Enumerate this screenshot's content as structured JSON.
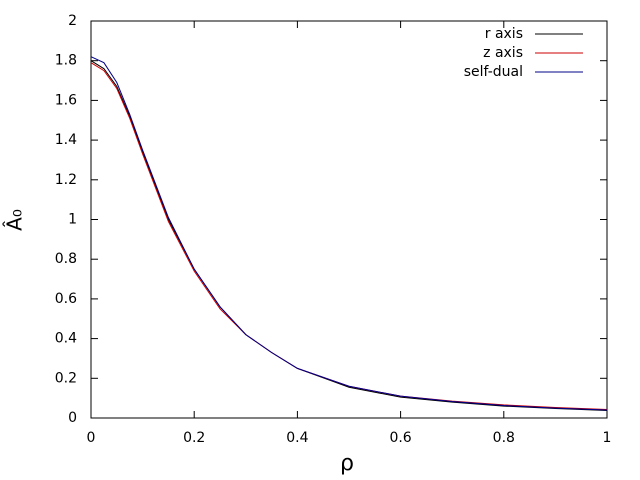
{
  "chart_data": {
    "type": "line",
    "xlabel": "ρ",
    "ylabel": "Â₀",
    "x": [
      0,
      0.025,
      0.05,
      0.075,
      0.1,
      0.15,
      0.2,
      0.25,
      0.3,
      0.35,
      0.4,
      0.5,
      0.6,
      0.7,
      0.8,
      0.9,
      1.0
    ],
    "series": [
      {
        "name": "r axis",
        "color": "#000000",
        "values": [
          1.8,
          1.76,
          1.67,
          1.52,
          1.34,
          1.0,
          0.75,
          0.56,
          0.42,
          0.33,
          0.25,
          0.155,
          0.105,
          0.08,
          0.06,
          0.048,
          0.038
        ]
      },
      {
        "name": "z axis",
        "color": "#cc0000",
        "values": [
          1.79,
          1.75,
          1.66,
          1.51,
          1.33,
          0.99,
          0.74,
          0.55,
          0.42,
          0.33,
          0.25,
          0.16,
          0.11,
          0.085,
          0.066,
          0.053,
          0.043
        ]
      },
      {
        "name": "self-dual",
        "color": "#00008b",
        "values": [
          1.82,
          1.79,
          1.69,
          1.53,
          1.35,
          1.01,
          0.75,
          0.56,
          0.42,
          0.33,
          0.25,
          0.16,
          0.11,
          0.083,
          0.063,
          0.05,
          0.04
        ]
      }
    ],
    "xlim": [
      0,
      1
    ],
    "xticks": [
      0,
      0.2,
      0.4,
      0.6,
      0.8,
      1
    ],
    "ylim": [
      0,
      2
    ],
    "yticks": [
      0,
      0.2,
      0.4,
      0.6,
      0.8,
      1,
      1.2,
      1.4,
      1.6,
      1.8,
      2
    ],
    "grid": false,
    "legend": "top-right"
  }
}
